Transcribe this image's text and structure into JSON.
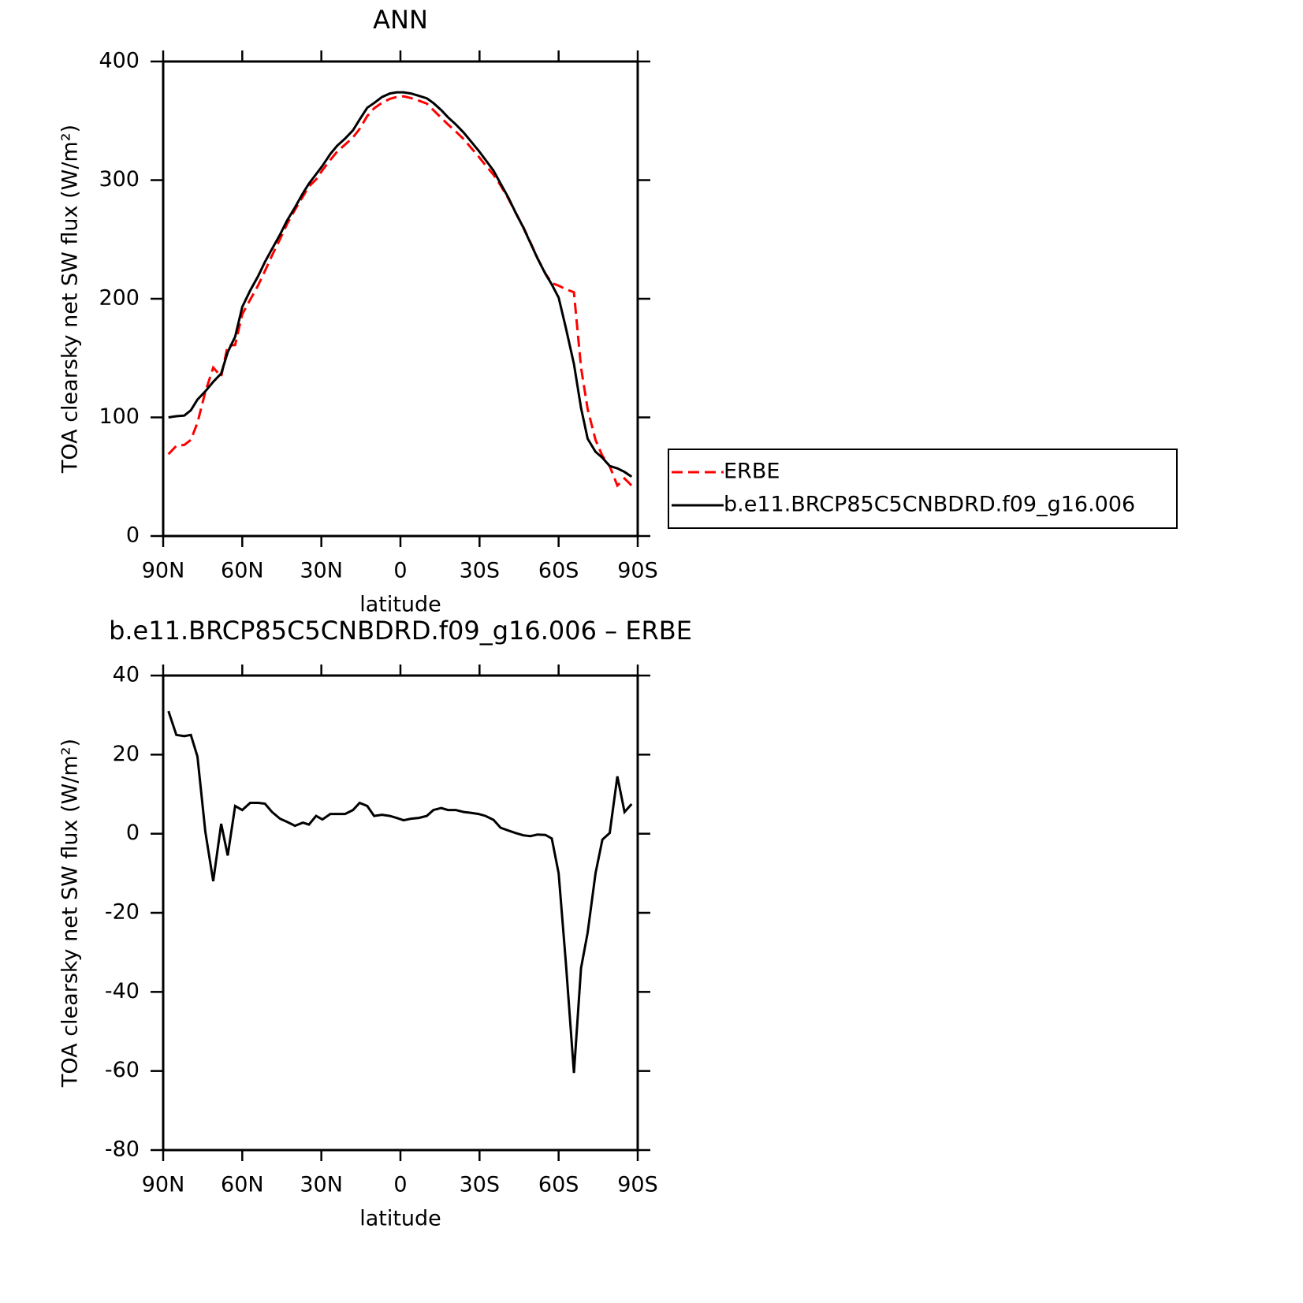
{
  "chart_data": [
    {
      "type": "line",
      "title": "ANN",
      "xlabel": "latitude",
      "ylabel": "TOA clearsky net SW flux (W/m²)",
      "x": [
        88,
        85,
        82,
        79.5,
        77,
        74,
        71,
        68,
        65.5,
        62.7,
        60,
        57,
        54,
        51.4,
        48.7,
        45.7,
        43,
        40,
        37,
        34.7,
        32,
        29.6,
        26.6,
        24,
        21,
        18,
        15.5,
        12.6,
        10,
        7,
        4,
        1.5,
        -1.2,
        -4,
        -7,
        -10,
        -12.5,
        -15.5,
        -18,
        -21,
        -24,
        -26.6,
        -29.6,
        -32.3,
        -35.3,
        -38,
        -41,
        -43.6,
        -46.6,
        -49.3,
        -52,
        -55,
        -57.4,
        -60,
        -62.8,
        -65.8,
        -68.5,
        -71,
        -74,
        -76.6,
        -79.4,
        -82.3,
        -85,
        -87.7
      ],
      "series": [
        {
          "name": "ERBE",
          "color": "#ff0000",
          "line_style": "dashed",
          "values": [
            69,
            76,
            76.8,
            81,
            95.5,
            121.5,
            142,
            134.5,
            160.5,
            161,
            187,
            199.2,
            211.2,
            223.4,
            236.5,
            250.2,
            263,
            275,
            286.2,
            294.7,
            300.5,
            308.4,
            317,
            324,
            330,
            336,
            343.2,
            354,
            360.5,
            365.2,
            368.5,
            370,
            370.6,
            369.2,
            367,
            364.5,
            359,
            352.5,
            347,
            341,
            334.5,
            327.7,
            320,
            312.5,
            304.5,
            295.5,
            284.2,
            272.8,
            260.4,
            247.6,
            234.2,
            221.3,
            213.2,
            211,
            208,
            205.5,
            142,
            107,
            81,
            67.5,
            58.8,
            42.5,
            48.5,
            42.5
          ]
        },
        {
          "name": "b.e11.BRCP85C5CNBDRD.f09_g16.006",
          "color": "#000000",
          "line_style": "solid",
          "values": [
            100,
            101,
            101.5,
            106,
            115,
            122,
            130,
            137,
            155,
            168,
            193,
            207,
            219,
            231,
            242,
            254,
            266,
            277,
            289,
            297,
            305,
            312,
            322,
            329,
            335,
            342,
            351,
            361,
            365,
            370,
            373,
            374,
            374,
            373,
            371,
            369,
            365,
            359,
            353,
            347,
            340,
            333,
            325,
            317,
            308,
            297,
            285,
            273,
            260,
            247,
            234,
            221,
            212,
            201,
            175,
            145,
            108,
            82,
            71,
            66,
            59,
            57,
            54,
            50
          ]
        }
      ],
      "xlim": [
        90,
        -90
      ],
      "xticks": [
        {
          "value": 90,
          "label": "90N"
        },
        {
          "value": 60,
          "label": "60N"
        },
        {
          "value": 30,
          "label": "30N"
        },
        0,
        {
          "value": -30,
          "label": "30S"
        },
        {
          "value": -60,
          "label": "60S"
        },
        {
          "value": -90,
          "label": "90S"
        }
      ],
      "ylim": [
        0,
        400
      ],
      "yticks": [
        0,
        100,
        200,
        300,
        400
      ],
      "legend": "right"
    },
    {
      "type": "line",
      "title": "b.e11.BRCP85C5CNBDRD.f09_g16.006 – ERBE",
      "xlabel": "latitude",
      "ylabel": "TOA clearsky net SW flux (W/m²)",
      "x": [
        88,
        85,
        82,
        79.5,
        77,
        74,
        71,
        68,
        65.5,
        62.7,
        60,
        57,
        54,
        51.4,
        48.7,
        45.7,
        43,
        40,
        37,
        34.7,
        32,
        29.6,
        26.6,
        24,
        21,
        18,
        15.5,
        12.6,
        10,
        7,
        4,
        1.5,
        -1.2,
        -4,
        -7,
        -10,
        -12.5,
        -15.5,
        -18,
        -21,
        -24,
        -26.6,
        -29.6,
        -32.3,
        -35.3,
        -38,
        -41,
        -43.6,
        -46.6,
        -49.3,
        -52,
        -55,
        -57.4,
        -60,
        -62.8,
        -65.8,
        -68.5,
        -71,
        -74,
        -76.6,
        -79.4,
        -82.3,
        -85,
        -87.7
      ],
      "values": [
        31,
        25,
        24.7,
        25,
        19.5,
        0.5,
        -12,
        2.5,
        -5.5,
        7,
        6,
        7.8,
        7.8,
        7.6,
        5.5,
        3.8,
        3,
        2,
        2.8,
        2.3,
        4.5,
        3.6,
        5,
        5,
        5,
        6,
        7.8,
        7,
        4.5,
        4.8,
        4.5,
        4,
        3.4,
        3.8,
        4,
        4.5,
        6,
        6.5,
        6,
        6,
        5.5,
        5.3,
        5,
        4.5,
        3.5,
        1.5,
        0.8,
        0.2,
        -0.4,
        -0.6,
        -0.2,
        -0.3,
        -1.2,
        -10,
        -33,
        -60.5,
        -34,
        -25,
        -10,
        -1.5,
        0.2,
        14.5,
        5.5,
        7.5
      ],
      "color": "#000000",
      "xlim": [
        90,
        -90
      ],
      "xticks": [
        {
          "value": 90,
          "label": "90N"
        },
        {
          "value": 60,
          "label": "60N"
        },
        {
          "value": 30,
          "label": "30N"
        },
        0,
        {
          "value": -30,
          "label": "30S"
        },
        {
          "value": -60,
          "label": "60S"
        },
        {
          "value": -90,
          "label": "90S"
        }
      ],
      "ylim": [
        -80,
        40
      ],
      "yticks": [
        -80,
        -60,
        -40,
        -20,
        0,
        20,
        40
      ]
    }
  ]
}
